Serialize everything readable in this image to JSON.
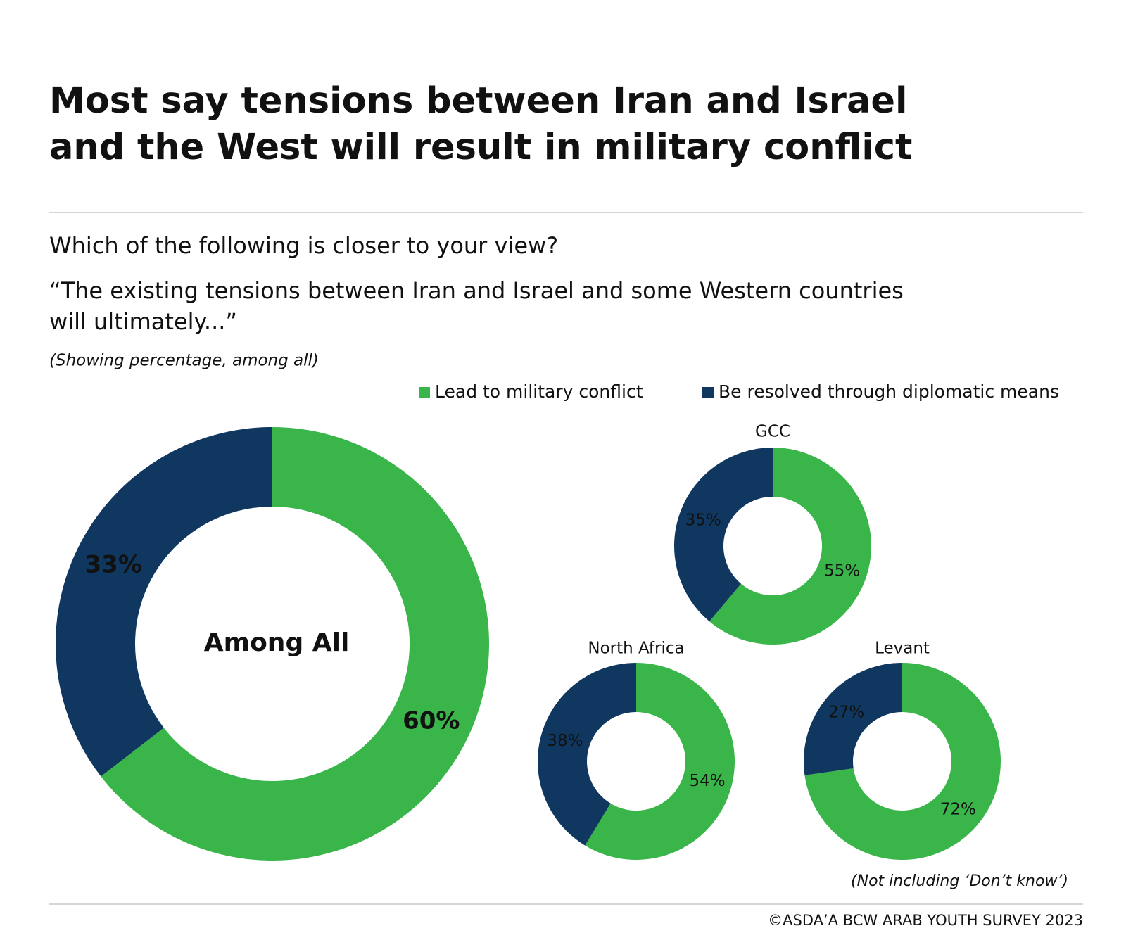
{
  "title": [
    "Most say tensions between Iran and Israel",
    "and the West will result in military conflict"
  ],
  "question": "Which of the following is closer to your view?",
  "quote": [
    "“The existing tensions between Iran and Israel and some Western countries",
    "will ultimately...”"
  ],
  "base_note": "(Showing percentage, among all)",
  "legend": {
    "categories": [
      "Lead to military conflict",
      "Be resolved through diplomatic means"
    ],
    "colors": [
      "#39b54a",
      "#10375f"
    ]
  },
  "footnote": "(Not including ‘Don’t know’)",
  "source": "©ASDA’A BCW ARAB YOUTH SURVEY 2023",
  "chart_data": [
    {
      "type": "donut",
      "title": "Among All",
      "values": [
        60,
        33
      ],
      "value_labels": [
        "60%",
        "33%"
      ]
    },
    {
      "type": "donut",
      "title": "GCC",
      "values": [
        55,
        35
      ],
      "value_labels": [
        "55%",
        "35%"
      ]
    },
    {
      "type": "donut",
      "title": "North Africa",
      "values": [
        54,
        38
      ],
      "value_labels": [
        "54%",
        "38%"
      ]
    },
    {
      "type": "donut",
      "title": "Levant",
      "values": [
        72,
        27
      ],
      "value_labels": [
        "72%",
        "27%"
      ]
    }
  ]
}
